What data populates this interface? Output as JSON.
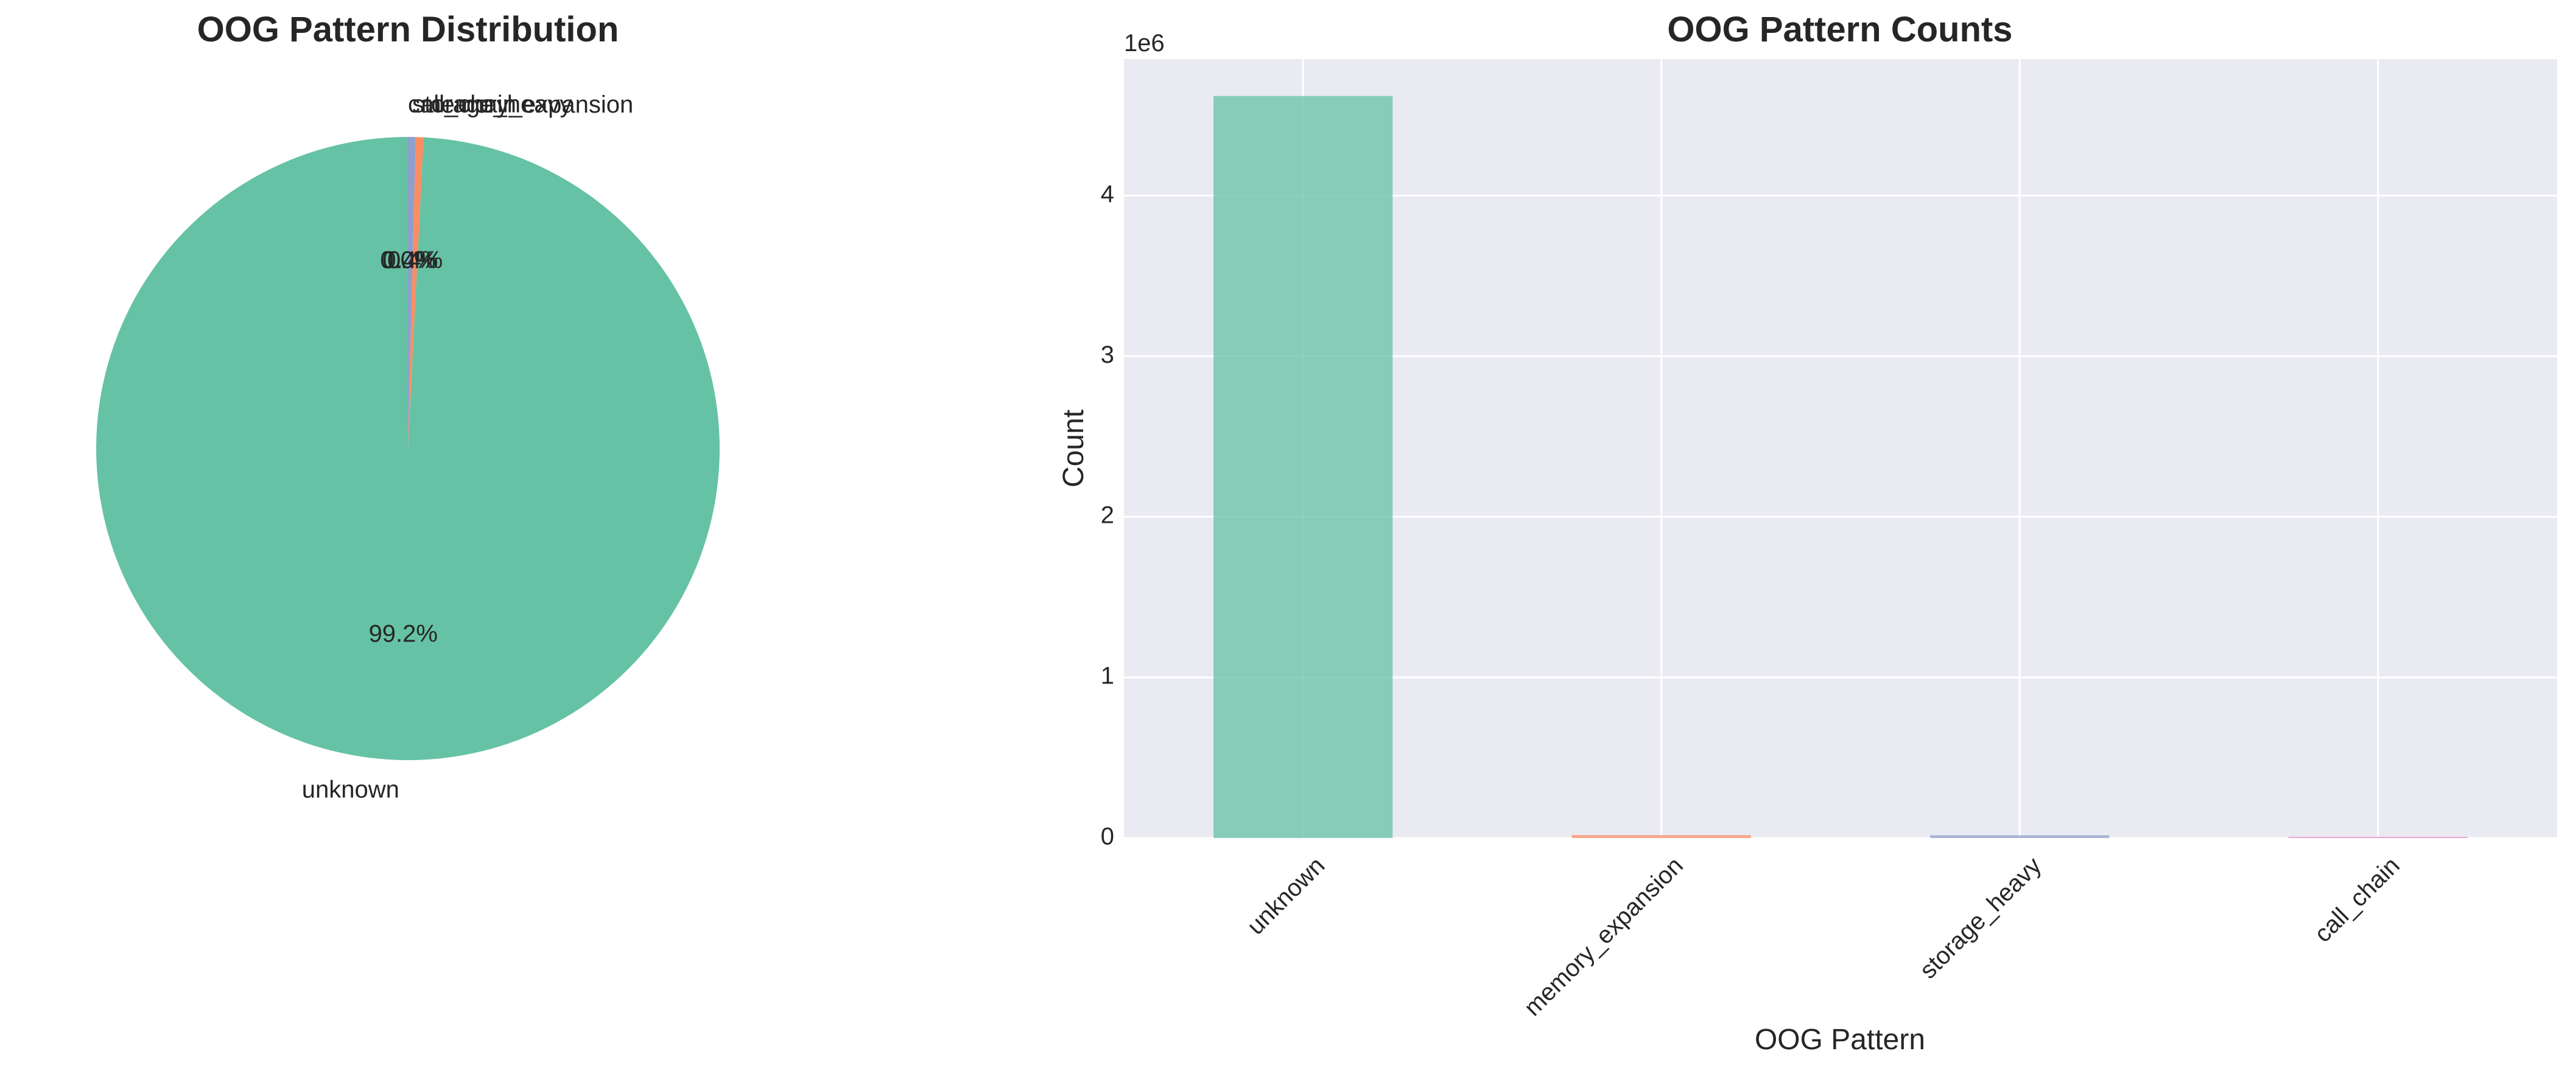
{
  "chart_data": [
    {
      "type": "pie",
      "title": "OOG Pattern Distribution",
      "labels": [
        "unknown",
        "memory_expansion",
        "storage_heavy",
        "call_chain"
      ],
      "percent_labels": [
        "99.2%",
        "0.4%",
        "0.4%",
        "0.0%"
      ],
      "values": [
        99.2,
        0.4,
        0.4,
        0.0
      ],
      "colors": [
        "#66c2a5",
        "#fc8d62",
        "#8da0cb",
        "#e78ac3"
      ],
      "start_angle": 90,
      "direction": "counterclockwise"
    },
    {
      "type": "bar",
      "title": "OOG Pattern Counts",
      "categories": [
        "unknown",
        "memory_expansion",
        "storage_heavy",
        "call_chain"
      ],
      "values": [
        4620000,
        18000,
        17000,
        800
      ],
      "colors": [
        "#66c2a5",
        "#fc8d62",
        "#8da0cb",
        "#e78ac3"
      ],
      "xlabel": "OOG Pattern",
      "ylabel": "Count",
      "ylim": [
        0,
        4850000
      ],
      "yticks": [
        0,
        1000000,
        2000000,
        3000000,
        4000000
      ],
      "ytick_labels": [
        "0",
        "1",
        "2",
        "3",
        "4"
      ],
      "y_offset_label": "1e6",
      "grid": true,
      "background": "#eaeaf2",
      "bar_alpha": 0.75
    }
  ]
}
